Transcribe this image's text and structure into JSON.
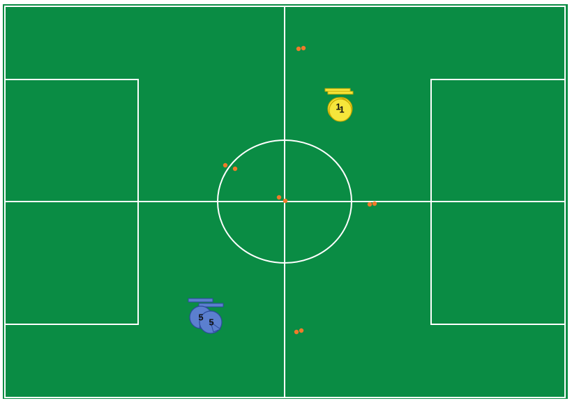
{
  "colors": {
    "border": "#ffffff",
    "pitch": "#0a8c44",
    "lines": "#ffffff",
    "ball": "#f07a2a",
    "team_yellow": "#f6e63b",
    "team_yellow_outline": "#c9a800",
    "team_blue": "#5b7fcf",
    "team_blue_outline": "#2c4a9a"
  },
  "players": [
    {
      "number": "1",
      "team": "yellow"
    },
    {
      "number": "1",
      "team": "yellow"
    },
    {
      "number": "5",
      "team": "blue"
    },
    {
      "number": "5",
      "team": "blue"
    }
  ],
  "icons": {
    "ball": "ball-icon",
    "player_yellow": "player-yellow-icon",
    "player_blue": "player-blue-icon"
  }
}
